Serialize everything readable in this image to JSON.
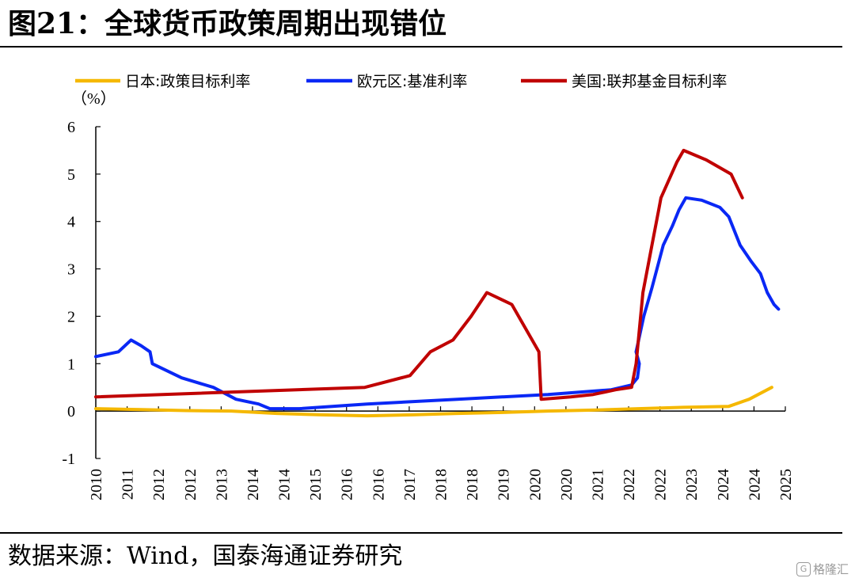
{
  "header": {
    "title": "图21：全球货币政策周期出现错位"
  },
  "footer": {
    "source": "数据来源：Wind，国泰海通证券研究"
  },
  "watermark": {
    "text": "格隆汇",
    "logo": "G"
  },
  "chart_data": {
    "type": "line",
    "unit_label": "（%）",
    "ylim": [
      -1,
      6
    ],
    "yticks": [
      -1,
      0,
      1,
      2,
      3,
      4,
      5,
      6
    ],
    "xlim": [
      2010.0,
      2025.25
    ],
    "xtick_labels": [
      "2010",
      "2011",
      "2012",
      "2012",
      "2013",
      "2014",
      "2014",
      "2015",
      "2016",
      "2016",
      "2017",
      "2018",
      "2018",
      "2019",
      "2020",
      "2020",
      "2021",
      "2022",
      "2022",
      "2023",
      "2024",
      "2024",
      "2025"
    ],
    "legend_position": "top",
    "grid": false,
    "series": [
      {
        "name": "日本:政策目标利率",
        "color": "#F5B800",
        "points": [
          [
            2010.0,
            0.05
          ],
          [
            2011.0,
            0.03
          ],
          [
            2012.0,
            0.01
          ],
          [
            2013.0,
            0.0
          ],
          [
            2014.0,
            -0.05
          ],
          [
            2015.0,
            -0.08
          ],
          [
            2016.0,
            -0.1
          ],
          [
            2017.0,
            -0.08
          ],
          [
            2018.0,
            -0.05
          ],
          [
            2019.0,
            -0.03
          ],
          [
            2020.0,
            0.0
          ],
          [
            2021.0,
            0.02
          ],
          [
            2022.0,
            0.05
          ],
          [
            2023.0,
            0.08
          ],
          [
            2024.0,
            0.1
          ],
          [
            2024.45,
            0.25
          ],
          [
            2024.95,
            0.5
          ]
        ]
      },
      {
        "name": "欧元区:基准利率",
        "color": "#0A28F5",
        "points": [
          [
            2010.0,
            1.15
          ],
          [
            2010.5,
            1.25
          ],
          [
            2010.78,
            1.5
          ],
          [
            2011.0,
            1.38
          ],
          [
            2011.2,
            1.25
          ],
          [
            2011.25,
            1.0
          ],
          [
            2011.9,
            0.7
          ],
          [
            2012.6,
            0.5
          ],
          [
            2013.1,
            0.25
          ],
          [
            2013.6,
            0.15
          ],
          [
            2013.85,
            0.05
          ],
          [
            2014.5,
            0.05
          ],
          [
            2016.0,
            0.15
          ],
          [
            2018.0,
            0.25
          ],
          [
            2020.0,
            0.35
          ],
          [
            2021.4,
            0.45
          ],
          [
            2021.85,
            0.55
          ],
          [
            2021.98,
            0.7
          ],
          [
            2022.02,
            1.0
          ],
          [
            2021.95,
            1.25
          ],
          [
            2022.12,
            2.0
          ],
          [
            2022.3,
            2.6
          ],
          [
            2022.55,
            3.5
          ],
          [
            2022.75,
            3.9
          ],
          [
            2022.9,
            4.25
          ],
          [
            2023.05,
            4.5
          ],
          [
            2023.4,
            4.45
          ],
          [
            2023.8,
            4.3
          ],
          [
            2024.0,
            4.1
          ],
          [
            2024.25,
            3.5
          ],
          [
            2024.5,
            3.15
          ],
          [
            2024.7,
            2.9
          ],
          [
            2024.85,
            2.5
          ],
          [
            2025.0,
            2.25
          ],
          [
            2025.1,
            2.15
          ]
        ]
      },
      {
        "name": "美国:联邦基金目标利率",
        "color": "#C00000",
        "points": [
          [
            2010.0,
            0.3
          ],
          [
            2015.95,
            0.5
          ],
          [
            2016.95,
            0.75
          ],
          [
            2017.4,
            1.25
          ],
          [
            2017.9,
            1.5
          ],
          [
            2018.3,
            2.0
          ],
          [
            2018.65,
            2.5
          ],
          [
            2019.2,
            2.25
          ],
          [
            2019.5,
            1.75
          ],
          [
            2019.8,
            1.25
          ],
          [
            2019.85,
            0.25
          ],
          [
            2020.5,
            0.3
          ],
          [
            2021.0,
            0.35
          ],
          [
            2021.5,
            0.45
          ],
          [
            2021.85,
            0.5
          ],
          [
            2021.95,
            1.0
          ],
          [
            2022.1,
            2.5
          ],
          [
            2022.3,
            3.5
          ],
          [
            2022.45,
            4.25
          ],
          [
            2022.5,
            4.5
          ],
          [
            2022.85,
            5.25
          ],
          [
            2023.0,
            5.5
          ],
          [
            2023.5,
            5.3
          ],
          [
            2024.05,
            5.0
          ],
          [
            2024.3,
            4.5
          ]
        ]
      }
    ]
  }
}
